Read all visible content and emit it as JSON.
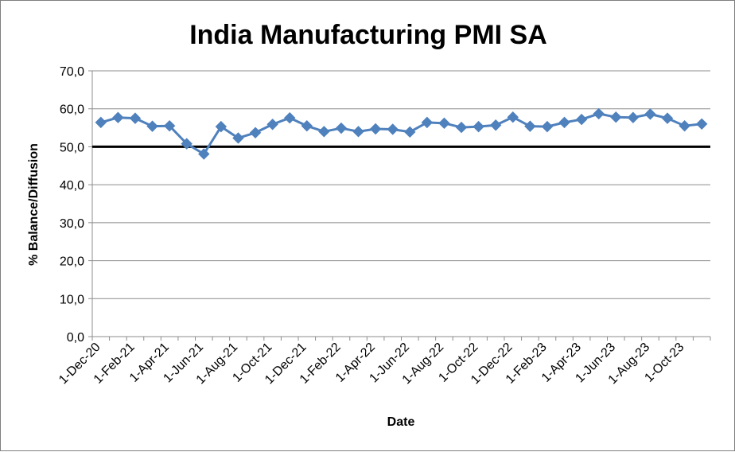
{
  "chart_data": {
    "type": "line",
    "title": "India Manufacturing PMI SA",
    "xlabel": "Date",
    "ylabel": "% Balance/Diffusion",
    "ylim": [
      0,
      70
    ],
    "y_ticks": [
      "0,0",
      "10,0",
      "20,0",
      "30,0",
      "40,0",
      "50,0",
      "60,0",
      "70,0"
    ],
    "y_tick_values": [
      0,
      10,
      20,
      30,
      40,
      50,
      60,
      70
    ],
    "x_tick_labels": [
      "1-Dec-20",
      "1-Feb-21",
      "1-Apr-21",
      "1-Jun-21",
      "1-Aug-21",
      "1-Oct-21",
      "1-Dec-21",
      "1-Feb-22",
      "1-Apr-22",
      "1-Jun-22",
      "1-Aug-22",
      "1-Oct-22",
      "1-Dec-22",
      "1-Feb-23",
      "1-Apr-23",
      "1-Jun-23",
      "1-Aug-23",
      "1-Oct-23"
    ],
    "grid": true,
    "reference_line": {
      "y": 50,
      "color": "#000000"
    },
    "series": [
      {
        "color": "#4f81bd",
        "x": [
          "2020-12-01",
          "2021-01-01",
          "2021-02-01",
          "2021-03-01",
          "2021-04-01",
          "2021-05-01",
          "2021-06-01",
          "2021-07-01",
          "2021-08-01",
          "2021-09-01",
          "2021-10-01",
          "2021-11-01",
          "2021-12-01",
          "2022-01-01",
          "2022-02-01",
          "2022-03-01",
          "2022-04-01",
          "2022-05-01",
          "2022-06-01",
          "2022-07-01",
          "2022-08-01",
          "2022-09-01",
          "2022-10-01",
          "2022-11-01",
          "2022-12-01",
          "2023-01-01",
          "2023-02-01",
          "2023-03-01",
          "2023-04-01",
          "2023-05-01",
          "2023-06-01",
          "2023-07-01",
          "2023-08-01",
          "2023-09-01",
          "2023-10-01",
          "2023-11-01"
        ],
        "values": [
          56.4,
          57.7,
          57.5,
          55.4,
          55.5,
          50.8,
          48.1,
          55.3,
          52.3,
          53.7,
          55.9,
          57.6,
          55.5,
          54.0,
          54.9,
          54.0,
          54.7,
          54.6,
          53.9,
          56.4,
          56.2,
          55.1,
          55.3,
          55.7,
          57.8,
          55.4,
          55.3,
          56.4,
          57.2,
          58.7,
          57.8,
          57.7,
          58.6,
          57.5,
          55.5,
          56.0
        ]
      }
    ]
  }
}
